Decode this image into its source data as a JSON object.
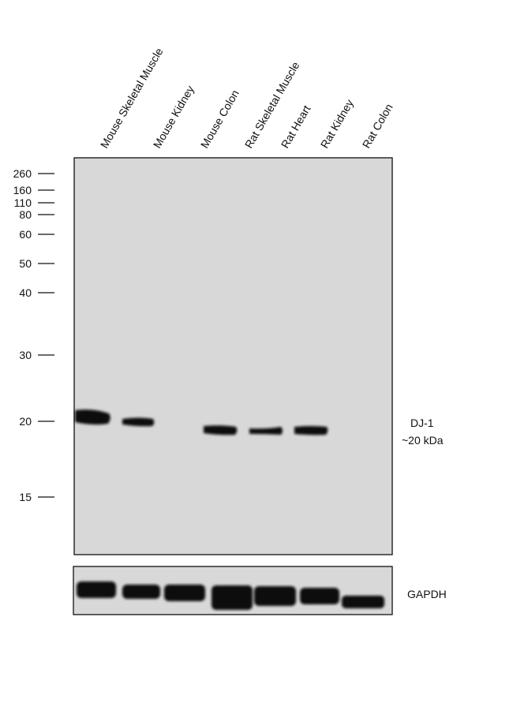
{
  "lanes": [
    "Mouse Skeletal Muscle",
    "Mouse Kidney",
    "Mouse Colon",
    "Rat Skeletal Muscle",
    "Rat Heart",
    "Rat Kidney",
    "Rat Colon"
  ],
  "markers": [
    260,
    160,
    110,
    80,
    60,
    50,
    40,
    30,
    20,
    15
  ],
  "target": {
    "name": "DJ-1",
    "size": "~20 kDa"
  },
  "loading_control": "GAPDH"
}
